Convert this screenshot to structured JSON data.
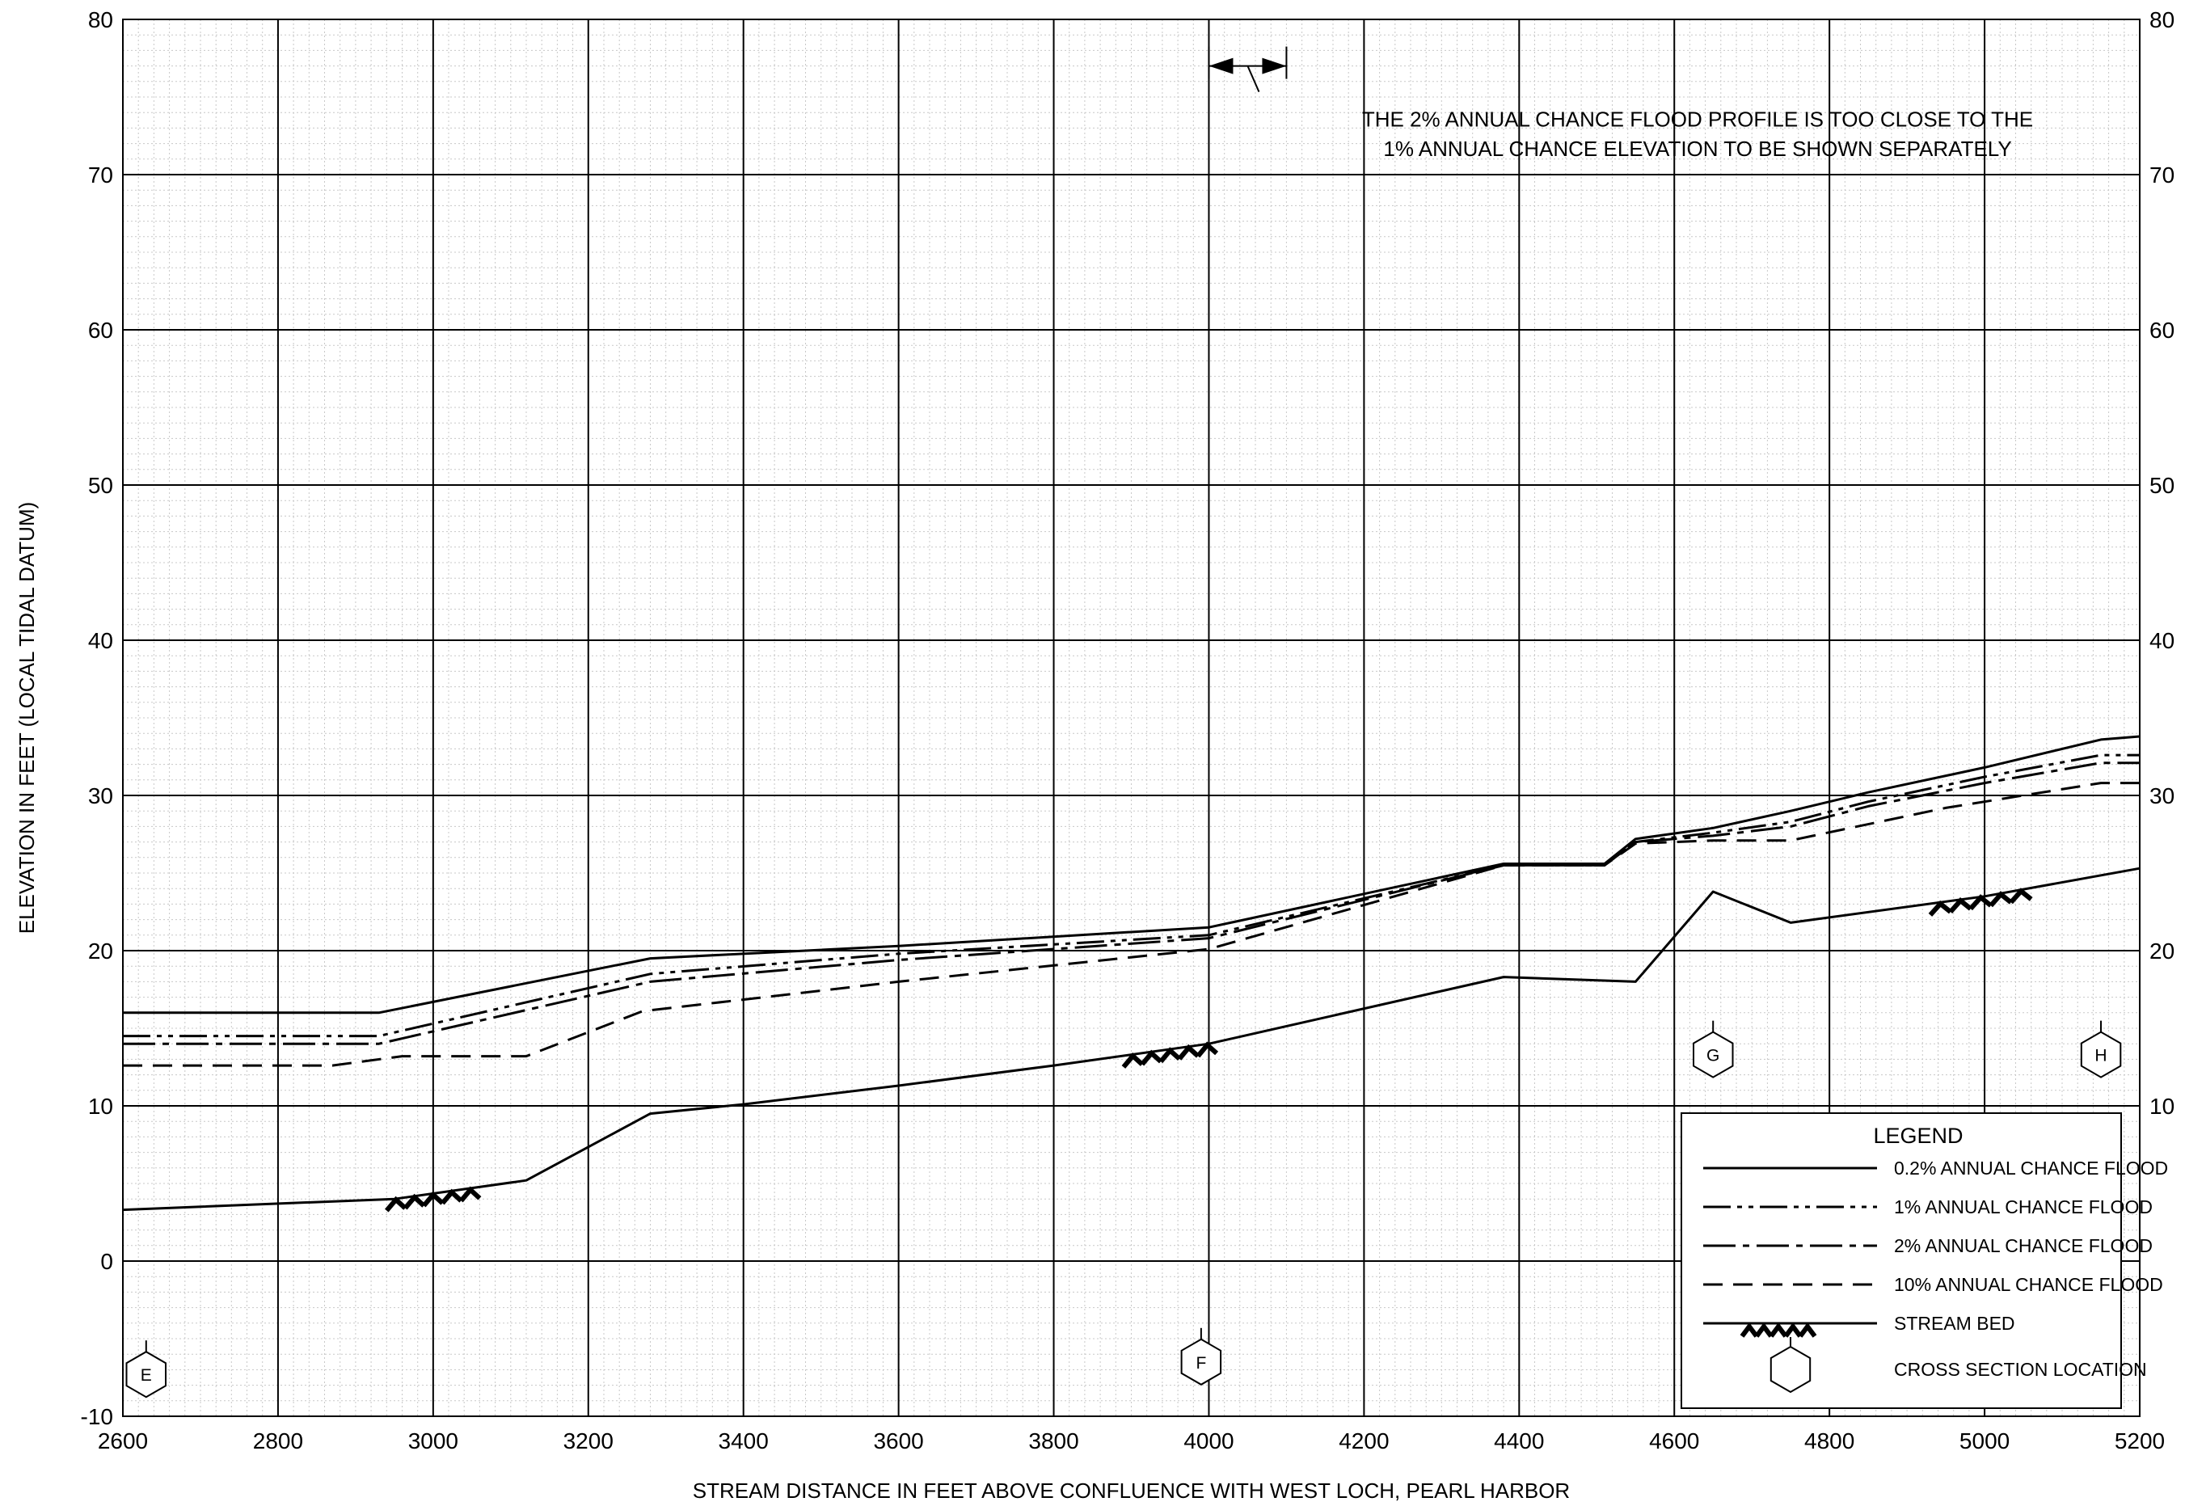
{
  "chart_data": {
    "type": "line",
    "xlabel": "STREAM DISTANCE IN FEET ABOVE CONFLUENCE WITH WEST LOCH, PEARL HARBOR",
    "ylabel": "ELEVATION IN FEET (LOCAL TIDAL DATUM)",
    "xlim": [
      2600,
      5200
    ],
    "ylim": [
      -10,
      80
    ],
    "x_ticks": [
      2600,
      2800,
      3000,
      3200,
      3400,
      3600,
      3800,
      4000,
      4200,
      4400,
      4600,
      4800,
      5000,
      5200
    ],
    "y_ticks": [
      -10,
      0,
      10,
      20,
      30,
      40,
      50,
      60,
      70,
      80
    ],
    "y_ticks_right": [
      10,
      20,
      30,
      40,
      50,
      60,
      70,
      80
    ],
    "grid": true,
    "legend_position": "bottom-right",
    "legend_title": "LEGEND",
    "annotation": {
      "line1": "THE 2% ANNUAL CHANCE FLOOD PROFILE IS TOO CLOSE TO THE",
      "line2": "1% ANNUAL CHANCE ELEVATION TO BE SHOWN SEPARATELY",
      "x_range": [
        4000,
        4100
      ],
      "y": 77
    },
    "series": [
      {
        "name": "0.2% ANNUAL CHANCE FLOOD",
        "style": "solid",
        "x": [
          2600,
          2930,
          3280,
          3600,
          4000,
          4380,
          4510,
          4550,
          4650,
          4750,
          4850,
          5000,
          5150,
          5200
        ],
        "y": [
          16.0,
          16.0,
          19.5,
          20.3,
          21.5,
          25.6,
          25.6,
          27.2,
          27.9,
          29.0,
          30.2,
          31.8,
          33.6,
          33.8
        ]
      },
      {
        "name": "1% ANNUAL CHANCE FLOOD",
        "style": "dash-dot-dot",
        "x": [
          2600,
          2930,
          3280,
          3600,
          4000,
          4380,
          4510,
          4550,
          4650,
          4750,
          4850,
          5000,
          5150,
          5200
        ],
        "y": [
          14.5,
          14.5,
          18.5,
          19.8,
          21.0,
          25.5,
          25.5,
          27.0,
          27.6,
          28.3,
          29.6,
          31.2,
          32.6,
          32.6
        ]
      },
      {
        "name": "2% ANNUAL CHANCE FLOOD",
        "style": "dash-dot",
        "x": [
          2600,
          2930,
          3280,
          3600,
          4000,
          4380,
          4510,
          4550,
          4650,
          4750,
          4850,
          5000,
          5150,
          5200
        ],
        "y": [
          14.0,
          14.0,
          18.0,
          19.4,
          20.8,
          25.5,
          25.5,
          27.0,
          27.4,
          28.0,
          29.3,
          30.8,
          32.1,
          32.1
        ]
      },
      {
        "name": "10% ANNUAL CHANCE FLOOD",
        "style": "dashed",
        "x": [
          2600,
          2870,
          2960,
          3120,
          3270,
          3600,
          4000,
          4380,
          4510,
          4550,
          4650,
          4750,
          4950,
          5150,
          5200
        ],
        "y": [
          12.6,
          12.6,
          13.2,
          13.2,
          16.1,
          18.0,
          20.1,
          25.5,
          25.5,
          26.9,
          27.1,
          27.1,
          29.2,
          30.8,
          30.8
        ]
      },
      {
        "name": "STREAM BED",
        "style": "streambed",
        "x": [
          2600,
          2950,
          3120,
          3280,
          3400,
          3600,
          3800,
          4000,
          4380,
          4550,
          4650,
          4750,
          5000,
          5200
        ],
        "y": [
          3.3,
          4.0,
          5.2,
          9.5,
          10.1,
          11.3,
          12.6,
          14.0,
          18.3,
          18.0,
          23.8,
          21.8,
          23.5,
          25.3
        ]
      }
    ],
    "streambed_hatches": [
      {
        "x1": 2940,
        "x2": 3060
      },
      {
        "x1": 3890,
        "x2": 4010
      },
      {
        "x1": 4930,
        "x2": 5060
      }
    ],
    "cross_sections": [
      {
        "label": "E",
        "x": 2630,
        "y": -7.3
      },
      {
        "label": "F",
        "x": 3990,
        "y": -6.5
      },
      {
        "label": "G",
        "x": 4650,
        "y": 13.3
      },
      {
        "label": "H",
        "x": 5150,
        "y": 13.3
      }
    ],
    "legend": {
      "series": [
        "0.2% ANNUAL CHANCE FLOOD",
        "1% ANNUAL CHANCE FLOOD",
        "2% ANNUAL CHANCE FLOOD",
        "10% ANNUAL CHANCE FLOOD",
        "STREAM BED",
        "CROSS SECTION LOCATION"
      ]
    }
  }
}
